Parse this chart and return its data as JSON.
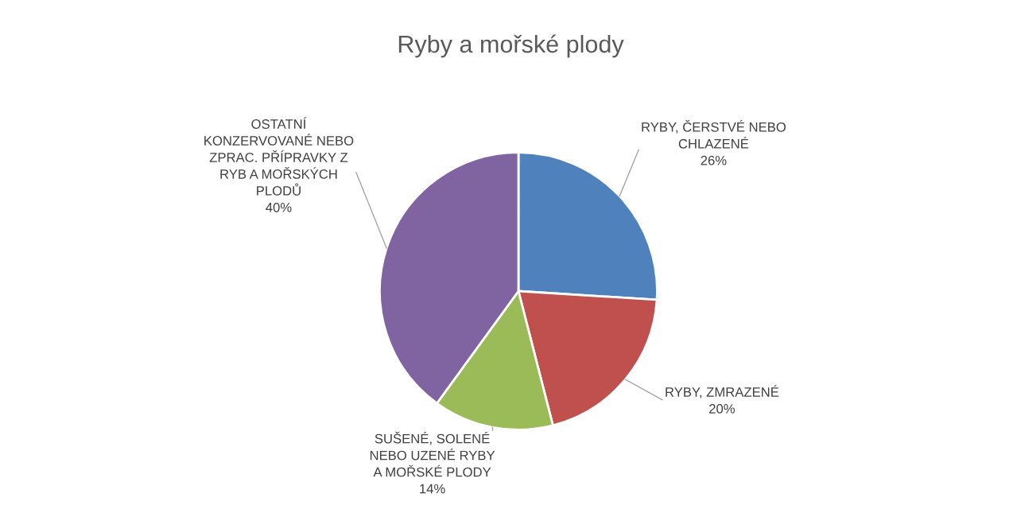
{
  "chart_data": {
    "type": "pie",
    "title": "Ryby a mořské plody",
    "categories": [
      "RYBY, ČERSTVÉ NEBO\nCHLAZENÉ",
      "RYBY, ZMRAZENÉ",
      "SUŠENÉ, SOLENÉ\nNEBO UZENÉ RYBY\nA MOŘSKÉ PLODY",
      "OSTATNÍ\nKONZERVOVANÉ NEBO\nZPRAC. PŘÍPRAVKY Z\nRYB A MOŘSKÝCH\nPLODŮ"
    ],
    "values": [
      26,
      20,
      14,
      40
    ],
    "value_labels": [
      "26%",
      "20%",
      "14%",
      "40%"
    ],
    "colors": [
      "#4f81bd",
      "#c0504d",
      "#9bbb59",
      "#8064a2"
    ],
    "legend": false
  }
}
